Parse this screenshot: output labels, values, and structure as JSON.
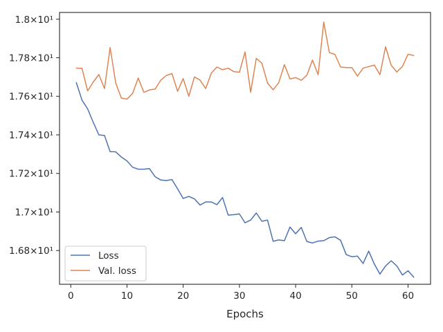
{
  "chart_data": {
    "type": "line",
    "xlabel": "Epochs",
    "ylabel": "",
    "title": "",
    "xlim": [
      -2.0,
      64.0
    ],
    "ylim": [
      16.625,
      18.035
    ],
    "xticks": [
      0,
      10,
      20,
      30,
      40,
      50,
      60
    ],
    "xtick_labels": [
      "0",
      "10",
      "20",
      "30",
      "40",
      "50",
      "60"
    ],
    "yticks": [
      16.8,
      17.0,
      17.2,
      17.4,
      17.6,
      17.8,
      18.0
    ],
    "ytick_labels": [
      "1.68×10¹",
      "1.7×10¹",
      "1.72×10¹",
      "1.74×10¹",
      "1.76×10¹",
      "1.78×10¹",
      "1.8×10¹"
    ],
    "grid": false,
    "legend_position": "lower-left",
    "x": [
      1,
      2,
      3,
      4,
      5,
      6,
      7,
      8,
      9,
      10,
      11,
      12,
      13,
      14,
      15,
      16,
      17,
      18,
      19,
      20,
      21,
      22,
      23,
      24,
      25,
      26,
      27,
      28,
      29,
      30,
      31,
      32,
      33,
      34,
      35,
      36,
      37,
      38,
      39,
      40,
      41,
      42,
      43,
      44,
      45,
      46,
      47,
      48,
      49,
      50,
      51,
      52,
      53,
      54,
      55,
      56,
      57,
      58,
      59,
      60,
      61
    ],
    "series": [
      {
        "name": "Loss",
        "color": "#4c72b0",
        "values": [
          17.67,
          17.58,
          17.535,
          17.465,
          17.4,
          17.397,
          17.313,
          17.312,
          17.285,
          17.265,
          17.232,
          17.222,
          17.222,
          17.225,
          17.183,
          17.166,
          17.163,
          17.168,
          17.12,
          17.07,
          17.081,
          17.068,
          17.036,
          17.052,
          17.052,
          17.038,
          17.075,
          16.984,
          16.986,
          16.99,
          16.944,
          16.958,
          16.995,
          16.952,
          16.958,
          16.848,
          16.855,
          16.851,
          16.922,
          16.887,
          16.92,
          16.847,
          16.839,
          16.849,
          16.851,
          16.867,
          16.871,
          16.853,
          16.779,
          16.768,
          16.771,
          16.733,
          16.797,
          16.73,
          16.678,
          16.72,
          16.747,
          16.72,
          16.673,
          16.695,
          16.662
        ]
      },
      {
        "name": "Val. loss",
        "color": "#dd8452",
        "values": [
          17.746,
          17.745,
          17.628,
          17.674,
          17.713,
          17.64,
          17.853,
          17.669,
          17.591,
          17.585,
          17.615,
          17.695,
          17.621,
          17.633,
          17.637,
          17.683,
          17.708,
          17.718,
          17.626,
          17.692,
          17.6,
          17.701,
          17.684,
          17.64,
          17.72,
          17.752,
          17.738,
          17.746,
          17.728,
          17.725,
          17.83,
          17.621,
          17.797,
          17.771,
          17.669,
          17.634,
          17.671,
          17.764,
          17.69,
          17.697,
          17.683,
          17.709,
          17.788,
          17.712,
          17.985,
          17.827,
          17.817,
          17.752,
          17.749,
          17.749,
          17.705,
          17.746,
          17.754,
          17.762,
          17.712,
          17.857,
          17.761,
          17.726,
          17.755,
          17.818,
          17.812
        ]
      }
    ]
  }
}
